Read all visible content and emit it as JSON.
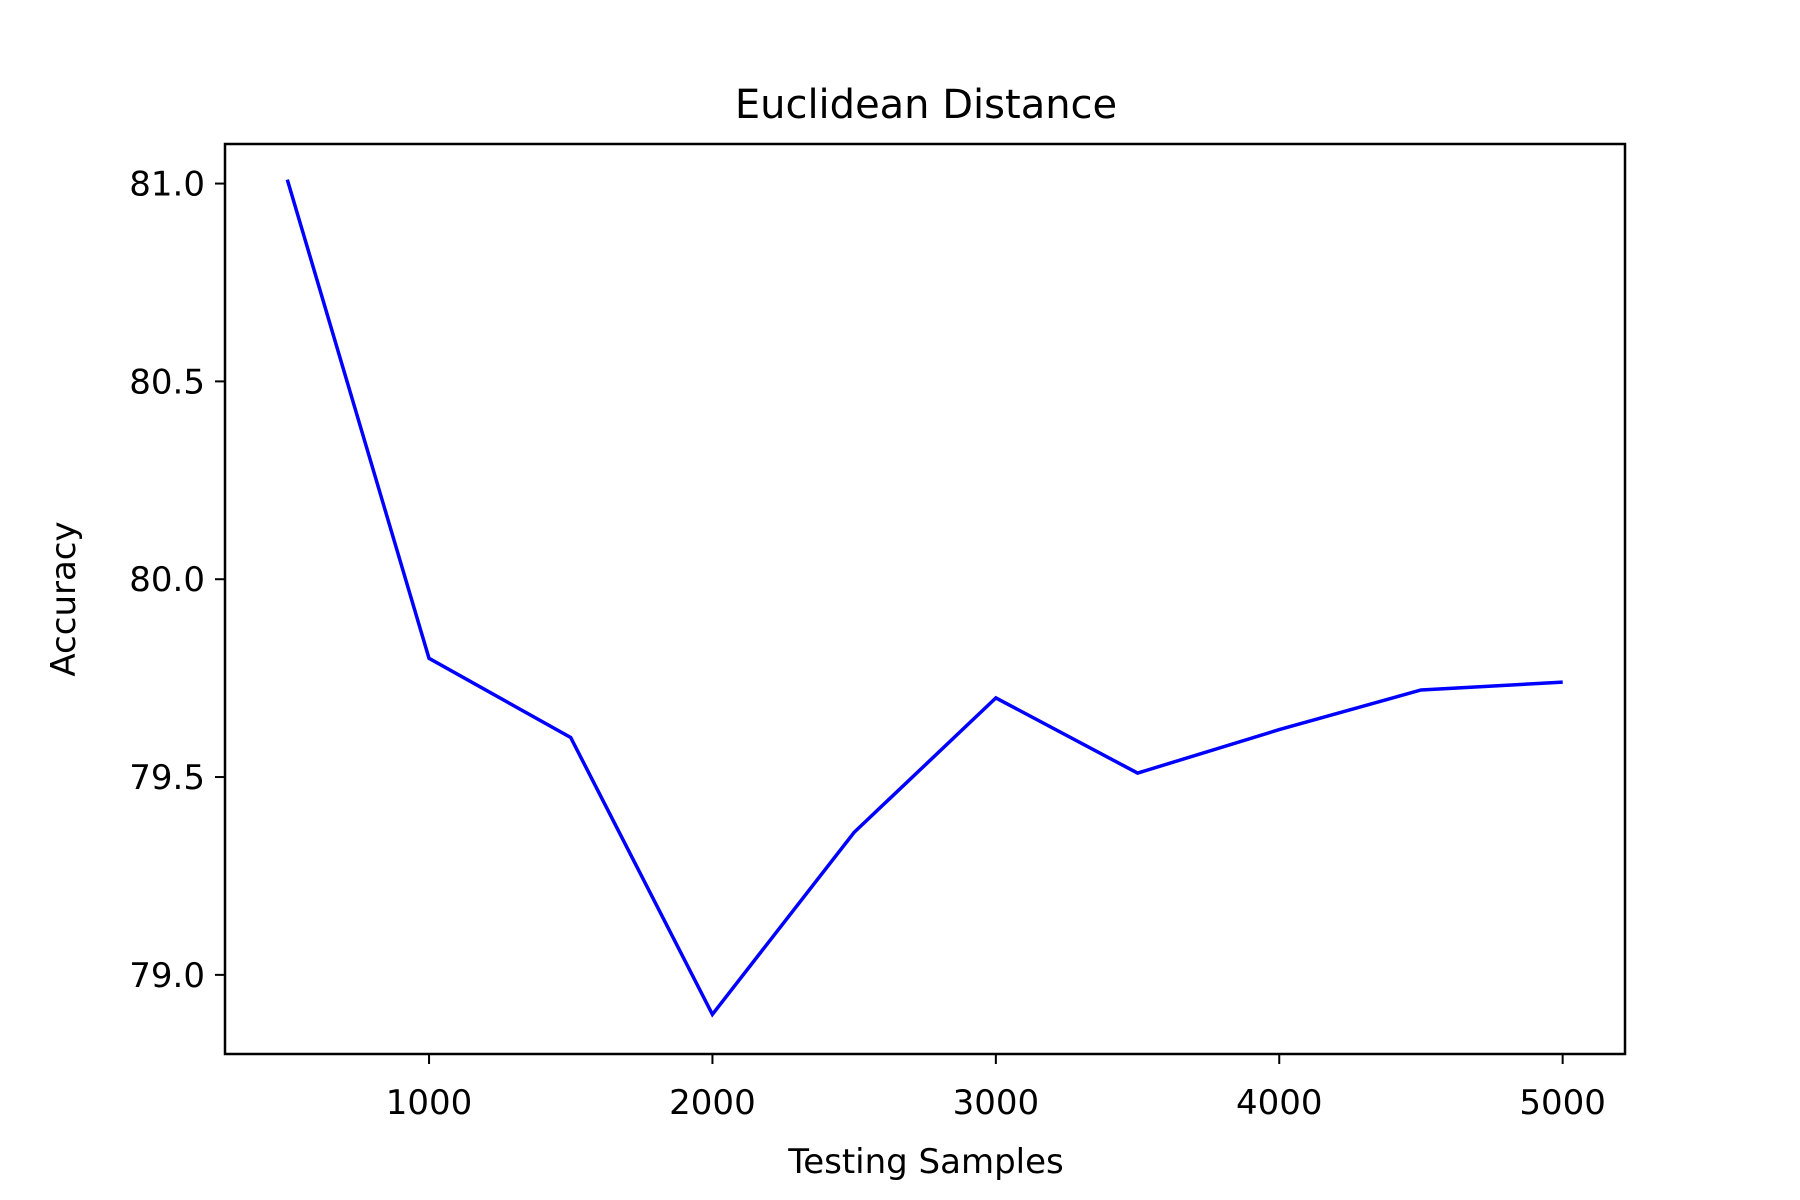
{
  "chart_data": {
    "type": "line",
    "title": "Euclidean Distance",
    "xlabel": "Testing Samples",
    "ylabel": "Accuracy",
    "xlim": [
      280,
      5220
    ],
    "ylim": [
      78.8,
      81.1
    ],
    "xticks": [
      1000,
      2000,
      3000,
      4000,
      5000
    ],
    "xtick_labels": [
      "1000",
      "2000",
      "3000",
      "4000",
      "5000"
    ],
    "yticks": [
      79.0,
      79.5,
      80.0,
      80.5,
      81.0
    ],
    "ytick_labels": [
      "79.0",
      "79.5",
      "80.0",
      "80.5",
      "81.0"
    ],
    "grid": false,
    "series": [
      {
        "color": "#0000ff",
        "x": [
          500,
          1000,
          1500,
          2000,
          2500,
          3000,
          3500,
          4000,
          4500,
          5000
        ],
        "y": [
          81.01,
          79.8,
          79.6,
          78.9,
          79.36,
          79.7,
          79.51,
          79.62,
          79.72,
          79.74
        ]
      }
    ]
  }
}
